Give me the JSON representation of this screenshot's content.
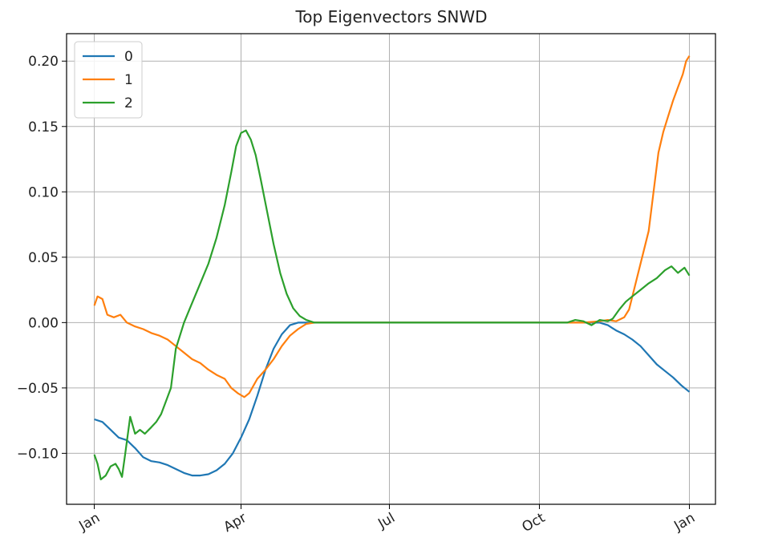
{
  "chart_data": {
    "type": "line",
    "title": "Top Eigenvectors SNWD",
    "xlabel": "",
    "ylabel": "",
    "x_ticks": [
      {
        "day": 0,
        "label": "Jan"
      },
      {
        "day": 90,
        "label": "Apr"
      },
      {
        "day": 181,
        "label": "Jul"
      },
      {
        "day": 273,
        "label": "Oct"
      },
      {
        "day": 365,
        "label": "Jan"
      }
    ],
    "y_ticks": [
      -0.1,
      -0.05,
      0.0,
      0.05,
      0.1,
      0.15,
      0.2
    ],
    "y_tick_labels": [
      "−0.10",
      "−0.05",
      "0.00",
      "0.05",
      "0.10",
      "0.15",
      "0.20"
    ],
    "xlim": [
      -17,
      381
    ],
    "ylim": [
      -0.139,
      0.221
    ],
    "grid": true,
    "legend_position": "top-left",
    "series": [
      {
        "name": "0",
        "color": "#1f77b4",
        "points": [
          [
            0,
            -0.074
          ],
          [
            5,
            -0.076
          ],
          [
            10,
            -0.082
          ],
          [
            15,
            -0.088
          ],
          [
            20,
            -0.09
          ],
          [
            25,
            -0.096
          ],
          [
            30,
            -0.103
          ],
          [
            35,
            -0.106
          ],
          [
            40,
            -0.107
          ],
          [
            45,
            -0.109
          ],
          [
            50,
            -0.112
          ],
          [
            55,
            -0.115
          ],
          [
            60,
            -0.117
          ],
          [
            65,
            -0.117
          ],
          [
            70,
            -0.116
          ],
          [
            75,
            -0.113
          ],
          [
            80,
            -0.108
          ],
          [
            85,
            -0.1
          ],
          [
            90,
            -0.088
          ],
          [
            95,
            -0.074
          ],
          [
            100,
            -0.056
          ],
          [
            105,
            -0.036
          ],
          [
            110,
            -0.02
          ],
          [
            115,
            -0.009
          ],
          [
            120,
            -0.002
          ],
          [
            125,
            0.0
          ],
          [
            130,
            0.0
          ],
          [
            140,
            0.0
          ],
          [
            150,
            0.0
          ],
          [
            200,
            0.0
          ],
          [
            250,
            0.0
          ],
          [
            300,
            0.0
          ],
          [
            310,
            0.0
          ],
          [
            315,
            -0.002
          ],
          [
            320,
            -0.006
          ],
          [
            325,
            -0.009
          ],
          [
            330,
            -0.013
          ],
          [
            335,
            -0.018
          ],
          [
            340,
            -0.025
          ],
          [
            345,
            -0.032
          ],
          [
            350,
            -0.037
          ],
          [
            355,
            -0.042
          ],
          [
            360,
            -0.048
          ],
          [
            365,
            -0.053
          ]
        ]
      },
      {
        "name": "1",
        "color": "#ff7f0e",
        "points": [
          [
            0,
            0.013
          ],
          [
            2,
            0.02
          ],
          [
            5,
            0.018
          ],
          [
            8,
            0.006
          ],
          [
            12,
            0.004
          ],
          [
            16,
            0.006
          ],
          [
            20,
            0.0
          ],
          [
            25,
            -0.003
          ],
          [
            30,
            -0.005
          ],
          [
            35,
            -0.008
          ],
          [
            40,
            -0.01
          ],
          [
            45,
            -0.013
          ],
          [
            50,
            -0.018
          ],
          [
            55,
            -0.023
          ],
          [
            60,
            -0.028
          ],
          [
            65,
            -0.031
          ],
          [
            70,
            -0.036
          ],
          [
            75,
            -0.04
          ],
          [
            80,
            -0.043
          ],
          [
            84,
            -0.05
          ],
          [
            88,
            -0.054
          ],
          [
            92,
            -0.057
          ],
          [
            95,
            -0.054
          ],
          [
            100,
            -0.043
          ],
          [
            105,
            -0.036
          ],
          [
            110,
            -0.028
          ],
          [
            115,
            -0.018
          ],
          [
            120,
            -0.01
          ],
          [
            125,
            -0.005
          ],
          [
            130,
            -0.001
          ],
          [
            135,
            0.0
          ],
          [
            140,
            0.0
          ],
          [
            200,
            0.0
          ],
          [
            250,
            0.0
          ],
          [
            300,
            0.0
          ],
          [
            310,
            0.001
          ],
          [
            315,
            0.002
          ],
          [
            320,
            0.001
          ],
          [
            325,
            0.004
          ],
          [
            328,
            0.01
          ],
          [
            331,
            0.025
          ],
          [
            334,
            0.04
          ],
          [
            337,
            0.055
          ],
          [
            340,
            0.07
          ],
          [
            343,
            0.1
          ],
          [
            346,
            0.13
          ],
          [
            349,
            0.146
          ],
          [
            352,
            0.158
          ],
          [
            355,
            0.17
          ],
          [
            358,
            0.18
          ],
          [
            361,
            0.19
          ],
          [
            363,
            0.2
          ],
          [
            365,
            0.204
          ]
        ]
      },
      {
        "name": "2",
        "color": "#2ca02c",
        "points": [
          [
            0,
            -0.101
          ],
          [
            2,
            -0.108
          ],
          [
            4,
            -0.12
          ],
          [
            7,
            -0.117
          ],
          [
            10,
            -0.11
          ],
          [
            13,
            -0.108
          ],
          [
            15,
            -0.112
          ],
          [
            17,
            -0.118
          ],
          [
            19,
            -0.1
          ],
          [
            22,
            -0.072
          ],
          [
            25,
            -0.085
          ],
          [
            28,
            -0.082
          ],
          [
            31,
            -0.085
          ],
          [
            35,
            -0.08
          ],
          [
            38,
            -0.076
          ],
          [
            41,
            -0.07
          ],
          [
            44,
            -0.06
          ],
          [
            47,
            -0.05
          ],
          [
            50,
            -0.02
          ],
          [
            55,
            0.0
          ],
          [
            60,
            0.015
          ],
          [
            65,
            0.03
          ],
          [
            70,
            0.045
          ],
          [
            75,
            0.065
          ],
          [
            80,
            0.09
          ],
          [
            84,
            0.115
          ],
          [
            87,
            0.135
          ],
          [
            90,
            0.145
          ],
          [
            93,
            0.147
          ],
          [
            96,
            0.14
          ],
          [
            99,
            0.128
          ],
          [
            102,
            0.11
          ],
          [
            106,
            0.085
          ],
          [
            110,
            0.06
          ],
          [
            114,
            0.038
          ],
          [
            118,
            0.022
          ],
          [
            122,
            0.011
          ],
          [
            126,
            0.005
          ],
          [
            130,
            0.002
          ],
          [
            135,
            0.0
          ],
          [
            140,
            0.0
          ],
          [
            200,
            0.0
          ],
          [
            250,
            0.0
          ],
          [
            290,
            0.0
          ],
          [
            295,
            0.002
          ],
          [
            300,
            0.001
          ],
          [
            305,
            -0.002
          ],
          [
            310,
            0.002
          ],
          [
            315,
            0.001
          ],
          [
            318,
            0.003
          ],
          [
            322,
            0.01
          ],
          [
            326,
            0.016
          ],
          [
            330,
            0.02
          ],
          [
            335,
            0.025
          ],
          [
            340,
            0.03
          ],
          [
            345,
            0.034
          ],
          [
            350,
            0.04
          ],
          [
            354,
            0.043
          ],
          [
            358,
            0.038
          ],
          [
            362,
            0.042
          ],
          [
            365,
            0.036
          ]
        ]
      }
    ]
  }
}
